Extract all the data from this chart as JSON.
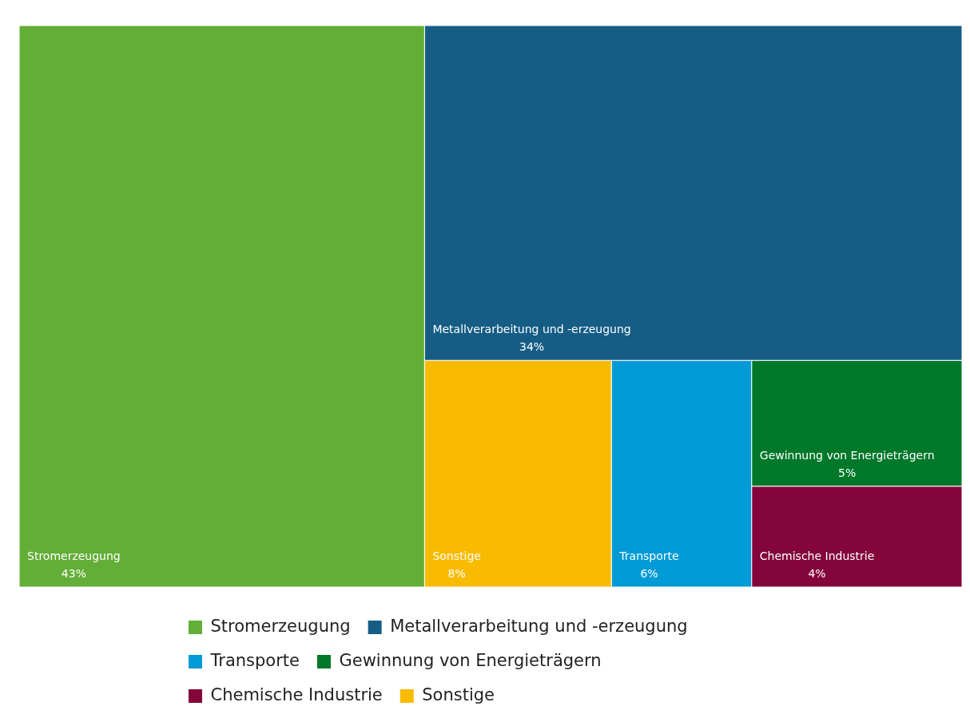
{
  "chart_data": {
    "type": "other",
    "categories": [
      "Stromerzeugung",
      "Metallverarbeitung und -erzeugung",
      "Transporte",
      "Gewinnung von Energieträgern",
      "Chemische Industrie",
      "Sonstige"
    ],
    "values": [
      43,
      34,
      6,
      5,
      4,
      8
    ],
    "value_labels": [
      "43%",
      "34%",
      "6%",
      "5%",
      "4%",
      "8%"
    ],
    "colors": [
      "#62ae37",
      "#155d85",
      "#009ad6",
      "#00782a",
      "#83053a",
      "#f9bb00"
    ]
  }
}
